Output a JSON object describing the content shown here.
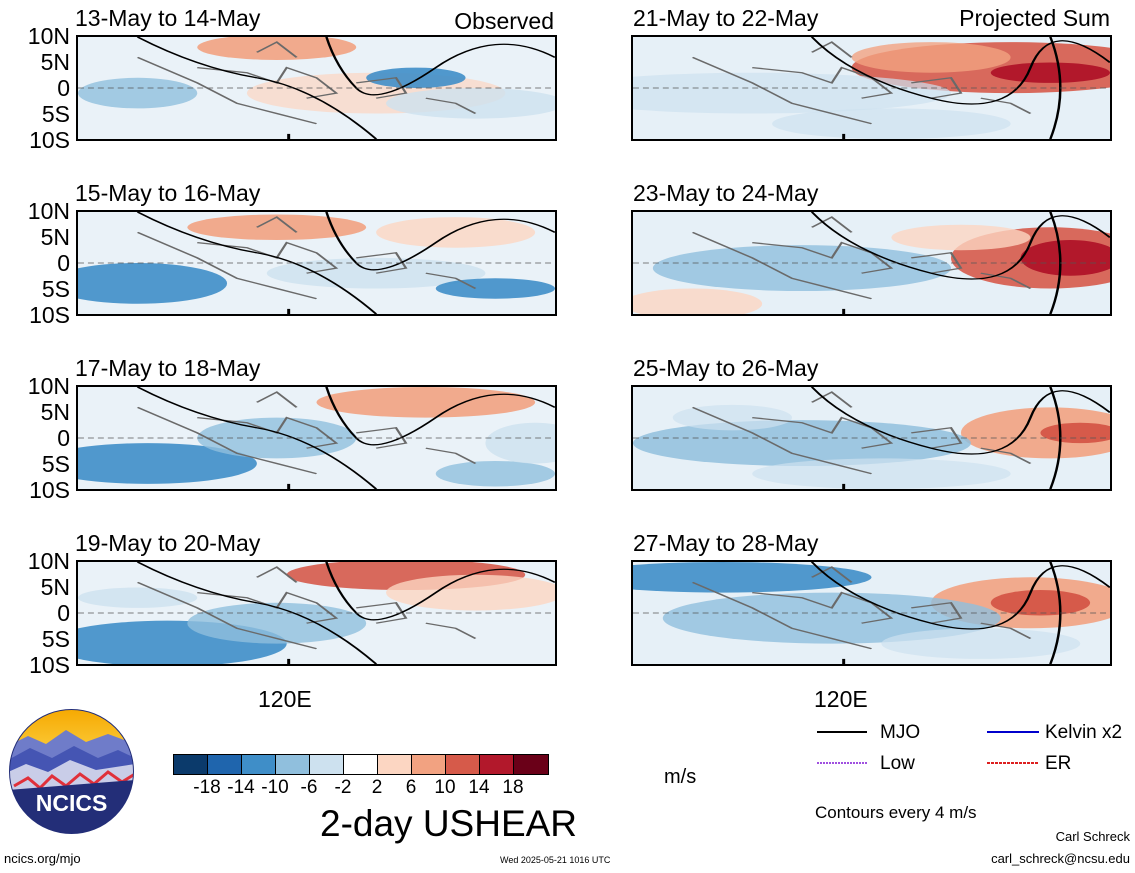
{
  "panels_left": [
    {
      "title": "13-May to 14-May",
      "side": "Observed"
    },
    {
      "title": "15-May to 16-May",
      "side": ""
    },
    {
      "title": "17-May to 18-May",
      "side": ""
    },
    {
      "title": "19-May to 20-May",
      "side": ""
    }
  ],
  "panels_right": [
    {
      "title": "21-May to 22-May",
      "side": "Projected Sum"
    },
    {
      "title": "23-May to 24-May",
      "side": ""
    },
    {
      "title": "25-May to 26-May",
      "side": ""
    },
    {
      "title": "27-May to 28-May",
      "side": ""
    }
  ],
  "y_labels": [
    "10N",
    "5N",
    "0",
    "5S",
    "10S"
  ],
  "x_label": "120E",
  "legend": {
    "mjo": "MJO",
    "kelvin": "Kelvin x2",
    "low": "Low",
    "er": "ER",
    "contours": "Contours every 4 m/s",
    "colors": {
      "mjo": "#000000",
      "kelvin": "#0000cc",
      "low": "#a050e0",
      "er": "#dd2020"
    }
  },
  "colorbar": {
    "ticks": [
      "-18",
      "-14",
      "-10",
      "-6",
      "-2",
      "2",
      "6",
      "10",
      "14",
      "18"
    ],
    "colors": [
      "#0b3a6b",
      "#1f65ad",
      "#3f8ec8",
      "#90bfdd",
      "#cde1ef",
      "#ffffff",
      "#fcd6c2",
      "#f2a281",
      "#d65a4a",
      "#b2182b",
      "#6a0018"
    ],
    "unit": "m/s",
    "title": "2-day USHEAR"
  },
  "logo": {
    "text": "NCICS"
  },
  "footer": {
    "url": "ncics.org/mjo",
    "timestamp": "Wed 2025-05-21 1016 UTC",
    "author": "Carl Schreck",
    "email": "carl_schreck@ncsu.edu"
  }
}
